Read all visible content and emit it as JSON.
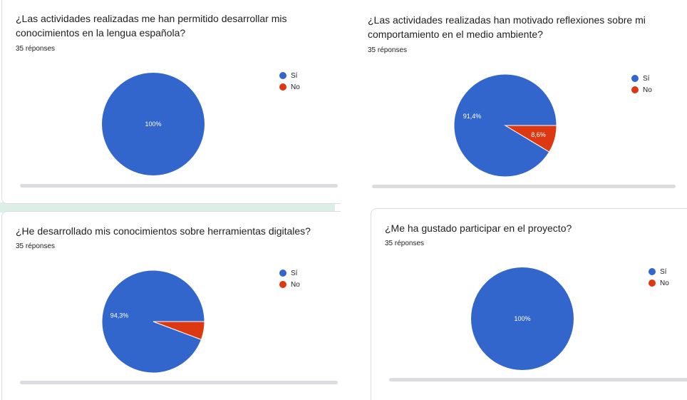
{
  "colors": {
    "si": "#3366cc",
    "no": "#dc3912"
  },
  "chart_data": [
    {
      "type": "pie",
      "title": "¿Las actividades realizadas me han permitido desarrollar mis conocimientos en la lengua española?",
      "responses": "35 réponses",
      "categories": [
        "Sí",
        "No"
      ],
      "values": [
        100,
        0
      ],
      "labels": [
        "100%",
        ""
      ],
      "legend": "right"
    },
    {
      "type": "pie",
      "title": "¿Las actividades realizadas han motivado reflexiones sobre mi comportamiento en el medio ambiente?",
      "responses": "35 réponses",
      "categories": [
        "Sí",
        "No"
      ],
      "values": [
        91.4,
        8.6
      ],
      "labels": [
        "91,4%",
        "8,6%"
      ],
      "legend": "right"
    },
    {
      "type": "pie",
      "title": "¿He desarrollado mis conocimientos sobre herramientas digitales?",
      "responses": "35 réponses",
      "categories": [
        "Sí",
        "No"
      ],
      "values": [
        94.3,
        5.7
      ],
      "labels": [
        "94,3%",
        ""
      ],
      "legend": "right"
    },
    {
      "type": "pie",
      "title": "¿Me ha gustado participar en el proyecto?",
      "responses": "35 réponses",
      "categories": [
        "Sí",
        "No"
      ],
      "values": [
        100,
        0
      ],
      "labels": [
        "100%",
        ""
      ],
      "legend": "right"
    }
  ]
}
